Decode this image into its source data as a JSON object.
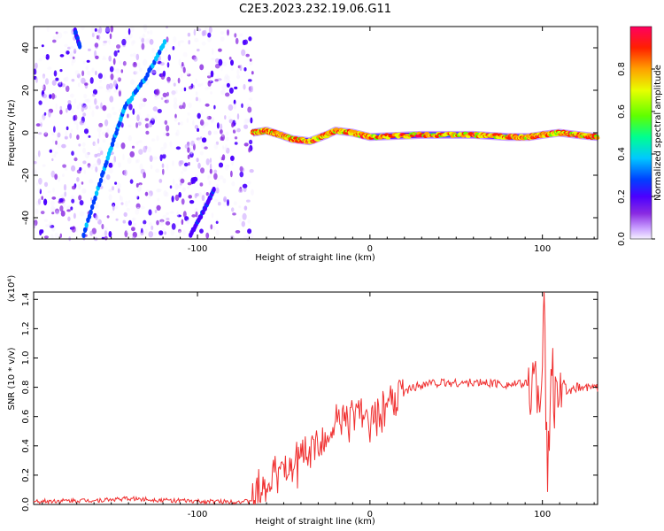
{
  "title": "C2E3.2023.232.19.06.G11",
  "colors": {
    "snr_line": "#f03030",
    "colormap": [
      "#f5f0ff",
      "#c9a0ff",
      "#8a2be2",
      "#4b00ff",
      "#0040ff",
      "#00c8ff",
      "#00ff90",
      "#60ff00",
      "#e8ff00",
      "#ffa000",
      "#ff2000",
      "#ff0060"
    ]
  },
  "chart_data": [
    {
      "type": "heatmap",
      "title": "C2E3.2023.232.19.06.G11",
      "xlabel": "Height of straight line (km)",
      "ylabel": "Frequency (Hz)",
      "xlim": [
        -195,
        132
      ],
      "ylim": [
        -50,
        50
      ],
      "x_ticks": [
        -100,
        0,
        100
      ],
      "x_tick_labels": [
        "-100",
        "0",
        "100"
      ],
      "y_ticks": [
        -40,
        -20,
        0,
        20,
        40
      ],
      "y_tick_labels": [
        "-40",
        "-20",
        "0",
        "20",
        "40"
      ],
      "colorbar": {
        "label": "Normalized spectral amplitude",
        "range": [
          0.0,
          1.0
        ],
        "ticks": [
          0.0,
          0.2,
          0.4,
          0.6,
          0.8
        ],
        "tick_labels": [
          "0.0",
          "0.2",
          "0.4",
          "0.6",
          "0.8"
        ]
      },
      "features": [
        {
          "kind": "noise",
          "x_range": [
            -195,
            -68
          ],
          "y_range": [
            -50,
            50
          ],
          "amplitude": 0.2
        },
        {
          "kind": "streak",
          "points": [
            [
              -166,
              -48
            ],
            [
              -156,
              -22
            ],
            [
              -148,
              -2
            ],
            [
              -142,
              12
            ],
            [
              -130,
              26
            ],
            [
              -118,
              44
            ]
          ],
          "amplitude": 0.45
        },
        {
          "kind": "streak",
          "points": [
            [
              -104,
              -48
            ],
            [
              -96,
              -36
            ],
            [
              -90,
              -26
            ]
          ],
          "amplitude": 0.35
        },
        {
          "kind": "streak",
          "points": [
            [
              -171,
              48
            ],
            [
              -168,
              40
            ]
          ],
          "amplitude": 0.35
        },
        {
          "kind": "band",
          "points": [
            [
              -68,
              0
            ],
            [
              -60,
              1
            ],
            [
              -52,
              -1
            ],
            [
              -45,
              -3
            ],
            [
              -35,
              -4
            ],
            [
              -25,
              -1
            ],
            [
              -20,
              1
            ],
            [
              -10,
              0
            ],
            [
              0,
              -2
            ],
            [
              30,
              -1
            ],
            [
              60,
              -1
            ],
            [
              80,
              -2
            ],
            [
              92,
              -2
            ],
            [
              100,
              -1
            ],
            [
              110,
              0
            ],
            [
              120,
              -1
            ],
            [
              132,
              -2
            ]
          ],
          "amplitude": 0.85
        }
      ]
    },
    {
      "type": "line",
      "xlabel": "Height of straight line (km)",
      "ylabel": "SNR (10 * v/v)",
      "y_multiplier": "(x10⁴)",
      "xlim": [
        -195,
        132
      ],
      "ylim": [
        0,
        1.45
      ],
      "x_ticks": [
        -100,
        0,
        100
      ],
      "x_tick_labels": [
        "-100",
        "0",
        "100"
      ],
      "y_ticks": [
        0.0,
        0.2,
        0.4,
        0.6,
        0.8,
        1.0,
        1.2,
        1.4
      ],
      "y_tick_labels": [
        "0.0",
        "0.2",
        "0.4",
        "0.6",
        "0.8",
        "1.0",
        "1.2",
        "1.4"
      ],
      "series": [
        {
          "color": "#f03030",
          "x": [
            -195,
            -175,
            -155,
            -140,
            -120,
            -100,
            -85,
            -70,
            -62,
            -55,
            -50,
            -45,
            -40,
            -35,
            -30,
            -25,
            -20,
            -15,
            -10,
            -5,
            0,
            5,
            10,
            15,
            20,
            25,
            30,
            35,
            40,
            50,
            60,
            70,
            80,
            88,
            93,
            96,
            99,
            101,
            103,
            105,
            107,
            110,
            115,
            120,
            126,
            132
          ],
          "y": [
            0.02,
            0.025,
            0.03,
            0.04,
            0.03,
            0.02,
            0.02,
            0.02,
            0.1,
            0.2,
            0.24,
            0.25,
            0.3,
            0.35,
            0.4,
            0.45,
            0.52,
            0.57,
            0.6,
            0.65,
            0.57,
            0.62,
            0.66,
            0.72,
            0.77,
            0.8,
            0.82,
            0.83,
            0.83,
            0.83,
            0.83,
            0.83,
            0.82,
            0.82,
            0.83,
            0.85,
            0.8,
            1.3,
            0.1,
            0.95,
            0.7,
            0.9,
            0.75,
            0.8,
            0.8,
            0.8
          ]
        }
      ]
    }
  ]
}
